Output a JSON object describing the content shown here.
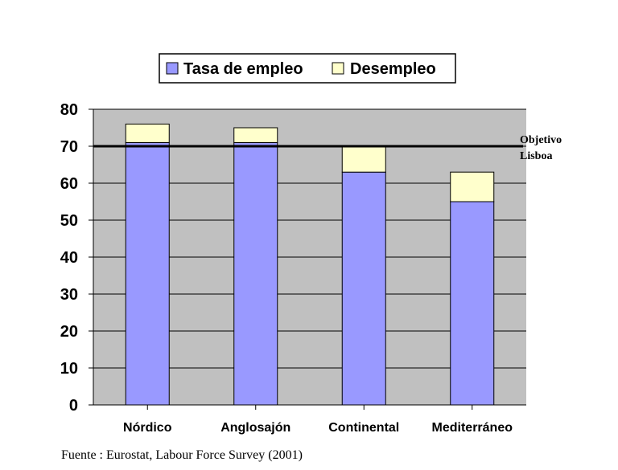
{
  "chart_data": {
    "type": "bar",
    "stacked": true,
    "categories": [
      "Nórdico",
      "Anglosajón",
      "Continental",
      "Mediterráneo"
    ],
    "series": [
      {
        "name": "Tasa de empleo",
        "values": [
          71,
          71,
          63,
          55
        ],
        "color": "#9999ff"
      },
      {
        "name": "Desempleo",
        "values": [
          5,
          4,
          7,
          8
        ],
        "color": "#ffffcc"
      }
    ],
    "ylim": [
      0,
      80
    ],
    "yticks": [
      0,
      10,
      20,
      30,
      40,
      50,
      60,
      70,
      80
    ],
    "grid": true,
    "plot_background": "#c0c0c0",
    "legend_position": "top",
    "reference_line": {
      "value": 70,
      "label_lines": [
        "Objetivo",
        "Lisboa"
      ]
    },
    "title": "",
    "xlabel": "",
    "ylabel": ""
  },
  "source": "Fuente : Eurostat, Labour Force Survey (2001)"
}
